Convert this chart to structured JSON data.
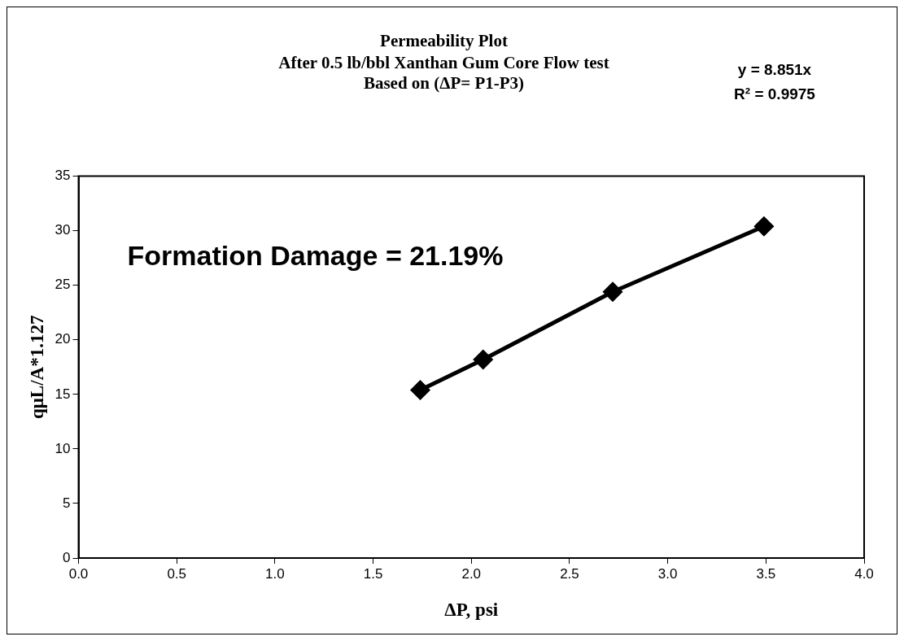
{
  "chart_data": {
    "type": "line",
    "title": "Permeability Plot",
    "subtitle": "After 0.5 lb/bbl Xanthan Gum Core Flow test\nBased on (ΔP= P1-P3)",
    "xlabel": "ΔP, psi",
    "ylabel": "qμL/A*1.127",
    "x": [
      1.74,
      2.06,
      2.72,
      3.49
    ],
    "series": [
      {
        "color": "#000000",
        "values": [
          15.4,
          18.2,
          24.4,
          30.4
        ]
      }
    ],
    "xlim": [
      0,
      4
    ],
    "xticks": [
      {
        "value": 0,
        "label": "0.0"
      },
      {
        "value": 0.5,
        "label": "0.5"
      },
      {
        "value": 1,
        "label": "1.0"
      },
      {
        "value": 1.5,
        "label": "1.5"
      },
      {
        "value": 2,
        "label": "2.0"
      },
      {
        "value": 2.5,
        "label": "2.5"
      },
      {
        "value": 3,
        "label": "3.0"
      },
      {
        "value": 3.5,
        "label": "3.5"
      },
      {
        "value": 4,
        "label": "4.0"
      }
    ],
    "ylim": [
      0,
      35
    ],
    "yticks": [
      0,
      5,
      10,
      15,
      20,
      25,
      30,
      35
    ],
    "marker": "diamond",
    "line_style": "solid",
    "legend": false,
    "grid": false,
    "annotations": [
      "Formation Damage = 21.19%",
      "y = 8.851x",
      "R² = 0.9975"
    ]
  }
}
